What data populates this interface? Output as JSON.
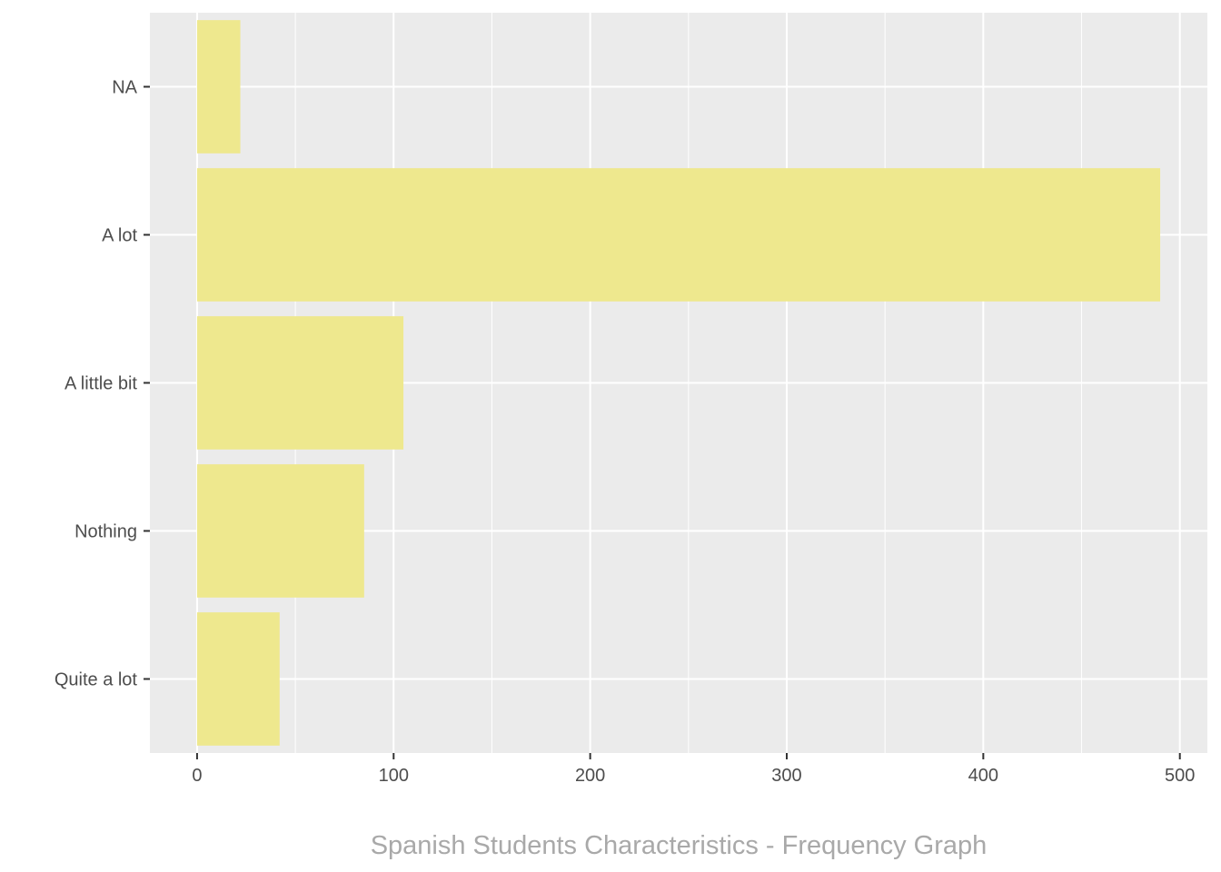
{
  "chart_data": {
    "type": "bar",
    "orientation": "horizontal",
    "categories": [
      "NA",
      "A lot",
      "A little bit",
      "Nothing",
      "Quite a lot"
    ],
    "values": [
      22,
      490,
      105,
      85,
      42
    ],
    "title": "",
    "xlabel": "Spanish Students Characteristics - Frequency Graph",
    "ylabel": "",
    "xlim": [
      -24,
      514
    ],
    "xticks": [
      0,
      100,
      200,
      300,
      400,
      500
    ],
    "xtick_labels": [
      "0",
      "100",
      "200",
      "300",
      "400",
      "500"
    ],
    "grid": true,
    "legend": "none",
    "bar_color": "#EEE88E",
    "panel_color": "#EBEBEB",
    "grid_color": "#FFFFFF"
  }
}
